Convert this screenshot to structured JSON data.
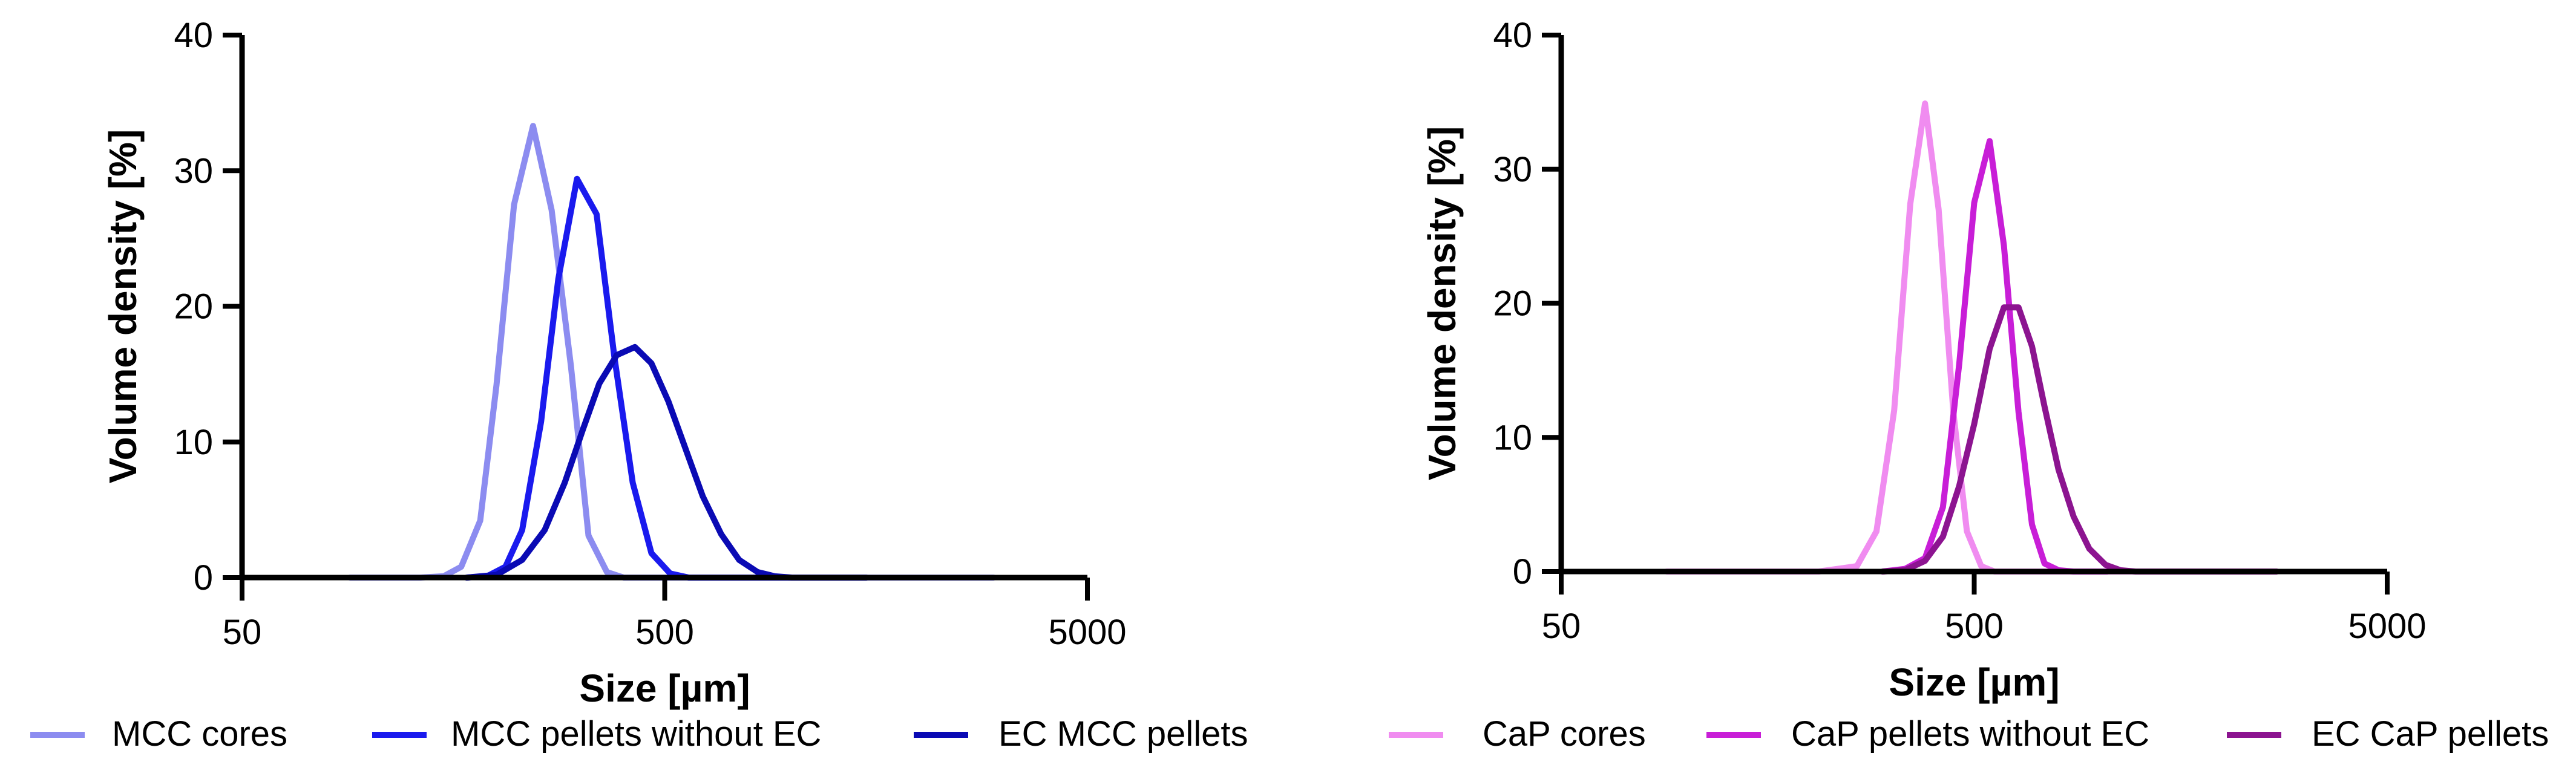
{
  "chart_data": [
    {
      "type": "line",
      "xscale": "log",
      "xlabel": "Size [µm]",
      "ylabel": "Volume density [%]",
      "xlim": [
        50,
        5000
      ],
      "ylim": [
        0,
        40
      ],
      "xticks": [
        50,
        500,
        5000
      ],
      "xtick_labels": [
        "50",
        "500",
        "5000"
      ],
      "yticks": [
        0,
        10,
        20,
        30,
        40
      ],
      "ytick_labels": [
        "0",
        "10",
        "20",
        "30",
        "40"
      ],
      "legend_position": "bottom",
      "series": [
        {
          "name": "MCC cores",
          "color": "#8c8cf0",
          "x": [
            90,
            100,
            115,
            132,
            150,
            165,
            183,
            200,
            220,
            244,
            270,
            300,
            330,
            365,
            400,
            440,
            485,
            535,
            590,
            650,
            720,
            800,
            900,
            1000,
            1200,
            1500,
            2000,
            3000
          ],
          "y": [
            0,
            0,
            0,
            0,
            0.1,
            0.8,
            4.2,
            14.2,
            27.5,
            33.3,
            27.1,
            15.6,
            3.1,
            0.4,
            0,
            0,
            0,
            0,
            0,
            0,
            0,
            0,
            0,
            0,
            0,
            0,
            0,
            0
          ]
        },
        {
          "name": "MCC pellets without EC",
          "color": "#1a1aee",
          "x": [
            170,
            190,
            210,
            230,
            255,
            280,
            310,
            345,
            380,
            420,
            465,
            515,
            570,
            630,
            700,
            780,
            870,
            1000
          ],
          "y": [
            0,
            0.1,
            0.8,
            3.5,
            11.5,
            22.0,
            29.4,
            26.8,
            16.3,
            7.0,
            1.8,
            0.3,
            0,
            0,
            0,
            0,
            0,
            0
          ]
        },
        {
          "name": "EC MCC pellets",
          "color": "#0a0ab4",
          "x": [
            170,
            200,
            230,
            260,
            290,
            320,
            350,
            385,
            425,
            465,
            510,
            560,
            615,
            680,
            750,
            830,
            910,
            1000,
            1100,
            1250,
            1500
          ],
          "y": [
            0,
            0.2,
            1.3,
            3.5,
            7.0,
            10.9,
            14.3,
            16.4,
            17.0,
            15.8,
            13.0,
            9.5,
            6.0,
            3.2,
            1.3,
            0.4,
            0.1,
            0,
            0,
            0,
            0
          ]
        }
      ]
    },
    {
      "type": "line",
      "xscale": "log",
      "xlabel": "Size [µm]",
      "ylabel": "Volume density [%]",
      "xlim": [
        50,
        5000
      ],
      "ylim": [
        0,
        40
      ],
      "xticks": [
        50,
        500,
        5000
      ],
      "xtick_labels": [
        "50",
        "500",
        "5000"
      ],
      "yticks": [
        0,
        10,
        20,
        30,
        40
      ],
      "ytick_labels": [
        "0",
        "10",
        "20",
        "30",
        "40"
      ],
      "legend_position": "bottom",
      "series": [
        {
          "name": "CaP cores",
          "color": "#f08cf0",
          "x": [
            90,
            120,
            160,
            210,
            260,
            290,
            320,
            350,
            380,
            410,
            445,
            480,
            520,
            560,
            610,
            660,
            720,
            800,
            1000,
            1500,
            2000,
            2700
          ],
          "y": [
            0,
            0,
            0,
            0,
            0.4,
            3.0,
            12.0,
            27.4,
            34.9,
            27.0,
            11.9,
            3.0,
            0.4,
            0,
            0,
            0,
            0,
            0,
            0,
            0,
            0,
            0
          ]
        },
        {
          "name": "CaP pellets without EC",
          "color": "#c81ed7",
          "x": [
            300,
            340,
            380,
            420,
            460,
            500,
            545,
            590,
            640,
            690,
            740,
            800,
            870,
            950,
            1050
          ],
          "y": [
            0,
            0.2,
            1.0,
            4.8,
            15.5,
            27.5,
            32.1,
            24.3,
            11.9,
            3.5,
            0.6,
            0.1,
            0,
            0,
            0
          ]
        },
        {
          "name": "EC CaP pellets",
          "color": "#8c1490",
          "x": [
            300,
            340,
            380,
            420,
            460,
            500,
            545,
            590,
            640,
            690,
            740,
            800,
            870,
            950,
            1040,
            1130,
            1230,
            1350,
            1500,
            1700,
            2000,
            2700
          ],
          "y": [
            0,
            0.1,
            0.8,
            2.6,
            6.4,
            11.0,
            16.6,
            19.7,
            19.7,
            16.8,
            12.3,
            7.6,
            4.1,
            1.7,
            0.5,
            0.1,
            0,
            0,
            0,
            0,
            0,
            0
          ]
        }
      ]
    }
  ]
}
